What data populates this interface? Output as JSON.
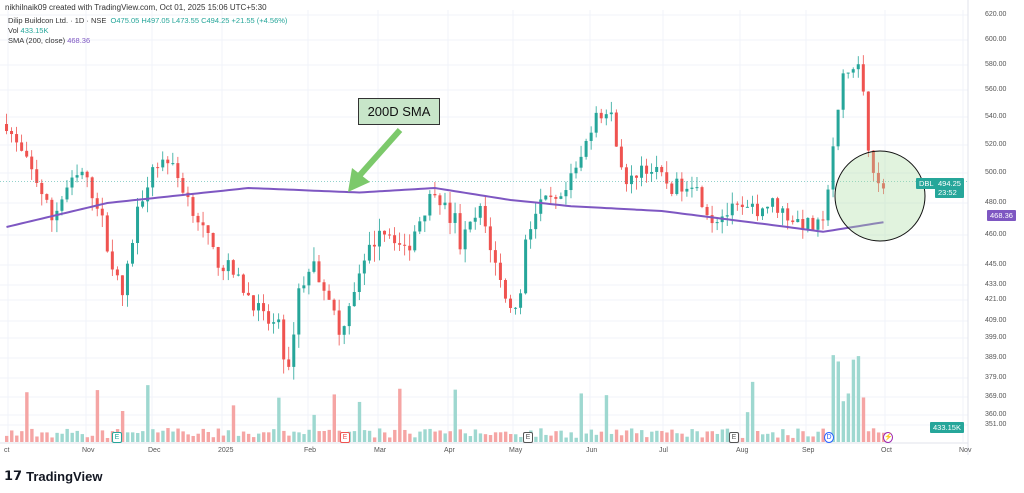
{
  "credit": "nikhilnaik09 created with TradingView.com, Oct 01, 2025 15:06 UTC+5:30",
  "legend": {
    "symbol": "Dilip Buildcon Ltd. · 1D · NSE",
    "open": "O475.05",
    "high": "H497.05",
    "low": "L473.55",
    "close": "C494.25",
    "change": "+21.55 (+4.56%)",
    "vol_label": "Vol",
    "vol": "433.15K",
    "sma_label": "SMA (200, close)",
    "sma": "468.36"
  },
  "annotation": "200D SMA",
  "tags": {
    "ticker": "DBL",
    "price": "494.25",
    "countdown": "23:52",
    "sma": "468.36",
    "volume": "433.15K"
  },
  "colors": {
    "up": "#26a69a",
    "down": "#ef5350",
    "sma": "#7e57c2",
    "vol_up": "#9ed8d0",
    "vol_down": "#f5a5a4"
  },
  "price_ticks": [
    "620.00",
    "600.00",
    "580.00",
    "560.00",
    "540.00",
    "520.00",
    "500.00",
    "480.00",
    "460.00",
    "445.00",
    "433.00",
    "421.00",
    "409.00",
    "399.00",
    "389.00",
    "379.00",
    "369.00",
    "360.00",
    "351.00"
  ],
  "months": [
    "ct",
    "Nov",
    "Dec",
    "2025",
    "Feb",
    "Mar",
    "Apr",
    "May",
    "Jun",
    "Jul",
    "Aug",
    "Sep",
    "Oct",
    "Nov"
  ],
  "events": [
    {
      "t": "E"
    },
    {
      "t": "E"
    },
    {
      "t": "E"
    },
    {
      "t": "E"
    },
    {
      "t": "D"
    },
    {
      "t": "⚡"
    }
  ],
  "chart_data": {
    "type": "candlestick",
    "symbol": "DBL",
    "interval": "1D",
    "price_path": [
      [
        0,
        535
      ],
      [
        2,
        520
      ],
      [
        6,
        495
      ],
      [
        9,
        470
      ],
      [
        12,
        490
      ],
      [
        15,
        500
      ],
      [
        18,
        480
      ],
      [
        21,
        445
      ],
      [
        23,
        425
      ],
      [
        26,
        475
      ],
      [
        29,
        505
      ],
      [
        32,
        510
      ],
      [
        35,
        490
      ],
      [
        38,
        470
      ],
      [
        41,
        450
      ],
      [
        45,
        440
      ],
      [
        48,
        425
      ],
      [
        51,
        410
      ],
      [
        54,
        405
      ],
      [
        56,
        380
      ],
      [
        58,
        430
      ],
      [
        61,
        445
      ],
      [
        64,
        425
      ],
      [
        66,
        400
      ],
      [
        69,
        430
      ],
      [
        74,
        465
      ],
      [
        77,
        460
      ],
      [
        79,
        450
      ],
      [
        82,
        470
      ],
      [
        85,
        490
      ],
      [
        88,
        470
      ],
      [
        89,
        470
      ],
      [
        90,
        455
      ],
      [
        94,
        475
      ],
      [
        97,
        445
      ],
      [
        100,
        415
      ],
      [
        102,
        425
      ],
      [
        103,
        460
      ],
      [
        106,
        480
      ],
      [
        110,
        480
      ],
      [
        114,
        510
      ],
      [
        117,
        545
      ],
      [
        120,
        540
      ],
      [
        123,
        490
      ],
      [
        126,
        505
      ],
      [
        129,
        500
      ],
      [
        132,
        490
      ],
      [
        136,
        495
      ],
      [
        140,
        470
      ],
      [
        144,
        475
      ],
      [
        148,
        475
      ],
      [
        152,
        480
      ],
      [
        156,
        470
      ],
      [
        160,
        465
      ],
      [
        162,
        465
      ],
      [
        164,
        520
      ],
      [
        166,
        570
      ],
      [
        169,
        580
      ],
      [
        170,
        560
      ],
      [
        171,
        520
      ],
      [
        173,
        490
      ],
      [
        174,
        494
      ]
    ],
    "sma_path": [
      [
        0,
        465
      ],
      [
        20,
        480
      ],
      [
        48,
        490
      ],
      [
        70,
        487
      ],
      [
        85,
        490
      ],
      [
        100,
        482
      ],
      [
        112,
        478
      ],
      [
        130,
        475
      ],
      [
        155,
        465
      ],
      [
        162,
        462
      ],
      [
        174,
        468
      ]
    ]
  }
}
